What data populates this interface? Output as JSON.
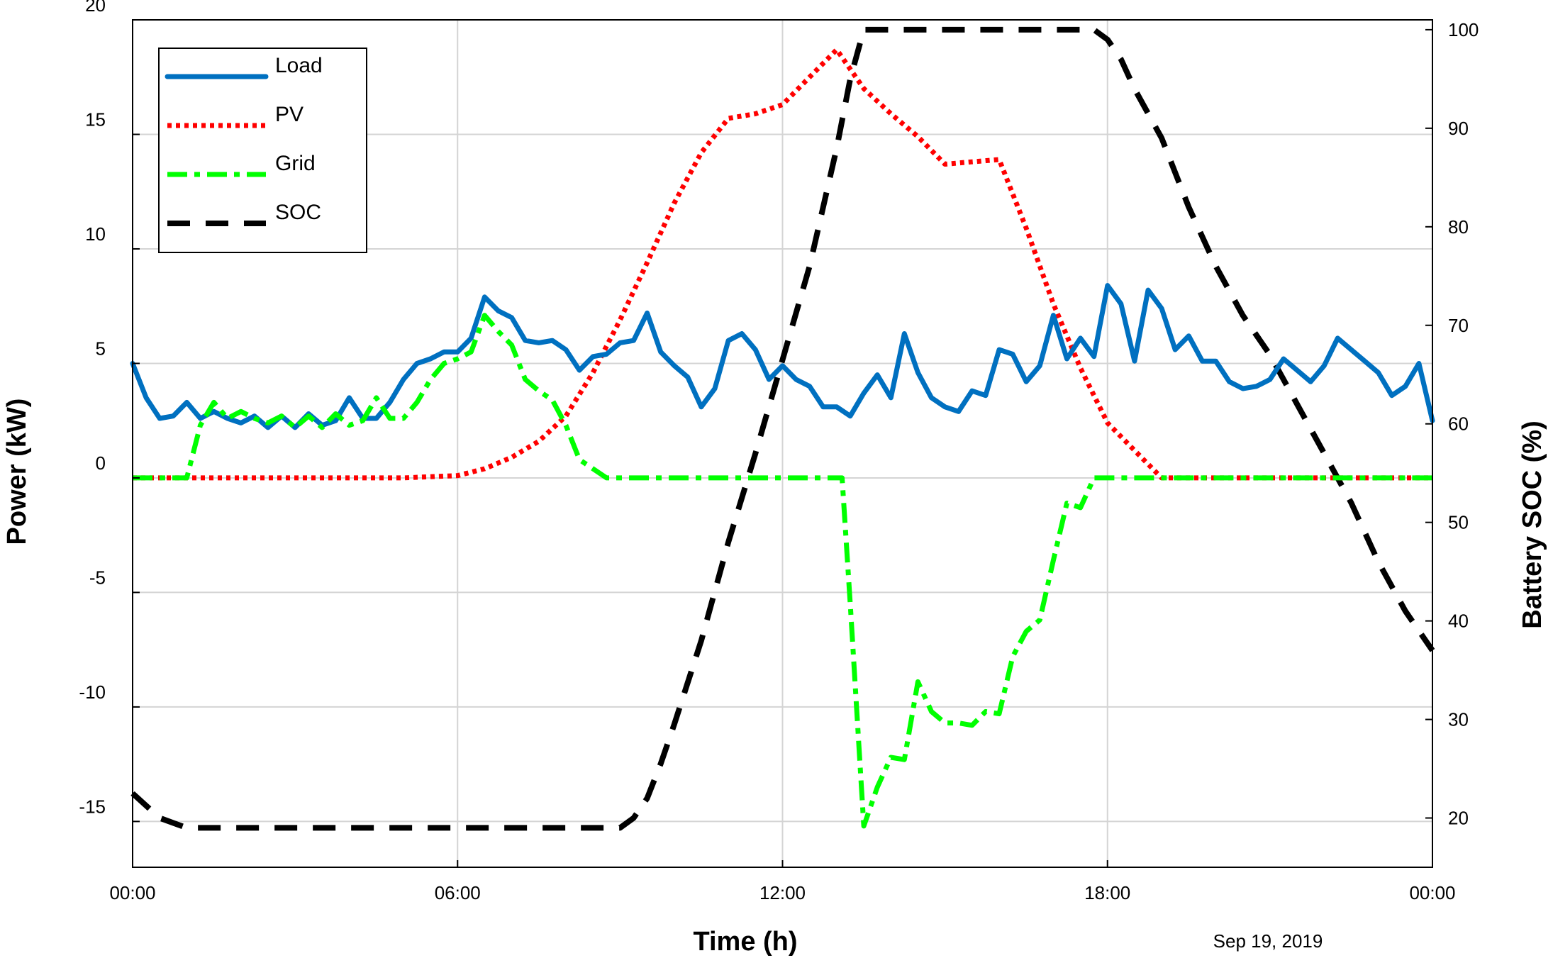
{
  "chart_data": {
    "type": "line",
    "xlabel": "Time (h)",
    "ylabel_left": "Power (kW)",
    "ylabel_right": "Battery SOC (%)",
    "date_label": "Sep 19, 2019",
    "x_ticks": [
      "00:00",
      "06:00",
      "12:00",
      "18:00",
      "00:00"
    ],
    "x_range_hours": [
      0,
      24
    ],
    "ylim_left": [
      -17,
      20
    ],
    "ylim_right": [
      15,
      101
    ],
    "yticks_left": [
      20,
      15,
      10,
      5,
      0,
      -5,
      -10,
      -15
    ],
    "yticks_right": [
      100,
      90,
      80,
      70,
      60,
      50,
      40,
      30,
      20
    ],
    "grid": true,
    "legend_position": "top-left",
    "series": [
      {
        "name": "Load",
        "axis": "left",
        "color": "#0070c0",
        "style": "solid",
        "x": [
          0,
          0.25,
          0.5,
          0.75,
          1,
          1.25,
          1.5,
          1.75,
          2,
          2.25,
          2.5,
          2.75,
          3,
          3.25,
          3.5,
          3.75,
          4,
          4.25,
          4.5,
          4.75,
          5,
          5.25,
          5.5,
          5.75,
          6,
          6.25,
          6.5,
          6.75,
          7,
          7.25,
          7.5,
          7.75,
          8,
          8.25,
          8.5,
          8.75,
          9,
          9.25,
          9.5,
          9.75,
          10,
          10.25,
          10.5,
          10.75,
          11,
          11.25,
          11.5,
          11.75,
          12,
          12.25,
          12.5,
          12.75,
          13,
          13.25,
          13.5,
          13.75,
          14,
          14.25,
          14.5,
          14.75,
          15,
          15.25,
          15.5,
          15.75,
          16,
          16.25,
          16.5,
          16.75,
          17,
          17.25,
          17.5,
          17.75,
          18,
          18.25,
          18.5,
          18.75,
          19,
          19.25,
          19.5,
          19.75,
          20,
          20.25,
          20.5,
          20.75,
          21,
          21.25,
          21.5,
          21.75,
          22,
          22.25,
          22.5,
          22.75,
          23,
          23.25,
          23.5,
          23.75,
          24
        ],
        "values": [
          5.0,
          3.5,
          2.6,
          2.7,
          3.3,
          2.6,
          2.9,
          2.6,
          2.4,
          2.7,
          2.2,
          2.7,
          2.2,
          2.8,
          2.3,
          2.5,
          3.5,
          2.6,
          2.6,
          3.3,
          4.3,
          5.0,
          5.2,
          5.5,
          5.5,
          6.1,
          7.9,
          7.3,
          7.0,
          6.0,
          5.9,
          6.0,
          5.6,
          4.7,
          5.3,
          5.4,
          5.9,
          6.0,
          7.2,
          5.5,
          4.9,
          4.4,
          3.1,
          3.9,
          6.0,
          6.3,
          5.6,
          4.3,
          4.9,
          4.3,
          4.0,
          3.1,
          3.1,
          2.7,
          3.7,
          4.5,
          3.5,
          6.3,
          4.6,
          3.5,
          3.1,
          2.9,
          3.8,
          3.6,
          5.6,
          5.4,
          4.2,
          4.9,
          7.1,
          5.2,
          6.1,
          5.3,
          8.4,
          7.6,
          5.1,
          8.2,
          7.4,
          5.6,
          6.2,
          5.1,
          5.1,
          4.2,
          3.9,
          4.0,
          4.3,
          5.2,
          4.7,
          4.2,
          4.9,
          6.1,
          5.6,
          5.1,
          4.6,
          3.6,
          4.0,
          5.0,
          2.5
        ]
      },
      {
        "name": "PV",
        "axis": "left",
        "color": "#ff0000",
        "style": "dotted",
        "x": [
          0,
          1,
          2,
          3,
          4,
          5,
          6,
          6.5,
          7,
          7.5,
          8,
          8.5,
          9,
          9.5,
          10,
          10.5,
          11,
          11.5,
          12,
          12.5,
          13,
          13.5,
          14,
          14.5,
          15,
          15.5,
          16,
          16.5,
          17,
          17.5,
          18,
          18.5,
          19,
          20,
          21,
          22,
          23,
          24
        ],
        "values": [
          0,
          0,
          0,
          0,
          0,
          0,
          0.1,
          0.4,
          0.9,
          1.6,
          2.7,
          4.6,
          6.9,
          9.4,
          12.0,
          14.2,
          15.7,
          15.9,
          16.3,
          17.5,
          18.7,
          17.0,
          15.9,
          14.9,
          13.7,
          13.8,
          13.9,
          10.9,
          7.6,
          4.8,
          2.4,
          1.2,
          0,
          0,
          0,
          0,
          0,
          0
        ]
      },
      {
        "name": "Grid",
        "axis": "left",
        "color": "#00ff00",
        "style": "dash-dot",
        "x": [
          0,
          0.75,
          1,
          1.25,
          1.5,
          1.75,
          2,
          2.25,
          2.5,
          2.75,
          3,
          3.25,
          3.5,
          3.75,
          4,
          4.25,
          4.5,
          4.75,
          5,
          5.25,
          5.5,
          5.75,
          6,
          6.25,
          6.5,
          6.75,
          7,
          7.25,
          7.5,
          7.75,
          8,
          8.25,
          8.5,
          8.75,
          9,
          9.5,
          10,
          11,
          12,
          12.5,
          13,
          13.1,
          13.25,
          13.5,
          13.75,
          14,
          14.25,
          14.5,
          14.75,
          15,
          15.25,
          15.5,
          15.75,
          16,
          16.25,
          16.5,
          16.75,
          17,
          17.25,
          17.5,
          17.75,
          18,
          19,
          20,
          21,
          22,
          23,
          24
        ],
        "values": [
          0,
          0,
          0,
          2.3,
          3.3,
          2.6,
          2.9,
          2.6,
          2.4,
          2.7,
          2.2,
          2.7,
          2.2,
          2.8,
          2.3,
          2.5,
          3.5,
          2.6,
          2.6,
          3.3,
          4.3,
          5.0,
          5.2,
          5.5,
          7.1,
          6.4,
          5.8,
          4.3,
          3.8,
          3.4,
          2.3,
          0.8,
          0.4,
          0,
          0,
          0,
          0,
          0,
          0,
          0,
          0,
          0,
          -5.5,
          -15.2,
          -13.5,
          -12.2,
          -12.3,
          -8.9,
          -10.2,
          -10.7,
          -10.7,
          -10.8,
          -10.2,
          -10.3,
          -7.8,
          -6.7,
          -6.2,
          -3.6,
          -1.1,
          -1.3,
          0,
          0,
          0,
          0,
          0,
          0,
          0,
          0
        ]
      },
      {
        "name": "SOC",
        "axis": "right",
        "color": "#000000",
        "style": "dashed",
        "x": [
          0,
          0.5,
          1,
          2,
          3,
          4,
          5,
          6,
          7,
          8,
          8.5,
          9,
          9.25,
          9.5,
          9.75,
          10,
          10.5,
          11,
          11.5,
          12,
          12.5,
          13,
          13.25,
          13.5,
          14,
          15,
          16,
          17,
          17.75,
          18,
          18.25,
          18.5,
          19,
          19.5,
          20,
          20.5,
          21,
          21.5,
          22,
          22.5,
          23,
          23.5,
          24
        ],
        "values": [
          22.5,
          20,
          19,
          19,
          19,
          19,
          19,
          19,
          19,
          19,
          19,
          19,
          20,
          22,
          25.5,
          29.5,
          38,
          48,
          57,
          66.5,
          76,
          88,
          95,
          100,
          100,
          100,
          100,
          100,
          100,
          99,
          97,
          94,
          89,
          82,
          76,
          71,
          67,
          62,
          57,
          52,
          46,
          41,
          37
        ]
      }
    ]
  }
}
